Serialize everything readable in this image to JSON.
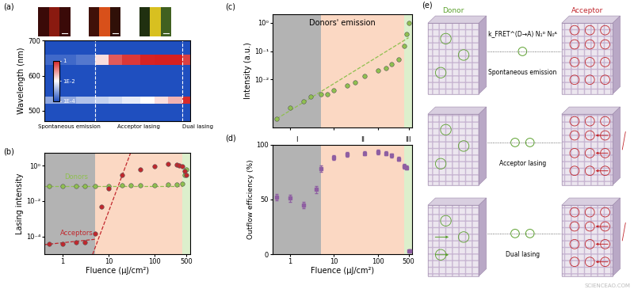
{
  "chart_data": [
    {
      "type": "heatmap",
      "panel": "(a)",
      "ylabel": "Wavelength (nm)",
      "log": "x",
      "tick_labels": "y",
      "xlim": [
        0.4,
        600
      ],
      "ylim": [
        470,
        700
      ],
      "yticks": [
        500,
        600,
        700
      ],
      "x_edges": [
        0.4,
        1,
        2,
        5,
        10,
        20,
        50,
        100,
        200,
        400,
        600
      ],
      "y_edges": [
        470,
        520,
        540,
        630,
        660,
        700
      ],
      "cells": [
        [
          0.0001,
          0.0001,
          0.0001,
          0.0001,
          0.0001,
          0.0001,
          0.0001,
          0.0001,
          0.0001,
          0.0001
        ],
        [
          0.001,
          0.001,
          0.002,
          0.003,
          0.004,
          0.006,
          0.01,
          0.02,
          0.05,
          0.8
        ],
        [
          0.0001,
          0.0001,
          0.0001,
          0.0001,
          0.0001,
          0.0001,
          0.0001,
          0.0001,
          0.0001,
          0.0001
        ],
        [
          0.0002,
          0.0002,
          0.0003,
          0.02,
          0.3,
          0.6,
          0.9,
          1,
          1,
          0.5
        ],
        [
          0.0001,
          0.0001,
          0.0001,
          0.0001,
          0.0001,
          0.0001,
          0.0001,
          0.0001,
          0.0001,
          0.0001
        ]
      ],
      "colorbar": {
        "range": [
          0.0001,
          1
        ],
        "log": true,
        "ticks": [
          1,
          {
            "value": 0.01,
            "label": "1E-2"
          },
          {
            "value": 0.0001,
            "label": "1E-4"
          }
        ]
      },
      "regions": [
        {
          "from": 0.4,
          "to": 5,
          "label": "Spontaneous emission"
        },
        {
          "from": 5,
          "to": 400,
          "label": "Acceptor lasing"
        },
        {
          "from": 400,
          "to": 600,
          "label": "Dual lasing"
        }
      ]
    },
    {
      "type": "scatter",
      "panel": "(b)",
      "xlabel": "Fluence (μJ/cm²)",
      "ylabel": "Lasing intensity",
      "log": true,
      "xlim": [
        0.4,
        600
      ],
      "xticks": [
        1,
        10,
        100,
        500
      ],
      "ylim": [
        1e-05,
        5
      ],
      "yticks": [
        {
          "value": 0.0001,
          "label": "10⁻⁴"
        },
        {
          "value": 0.01,
          "label": "10⁻²"
        },
        {
          "value": 1,
          "label": "10⁰"
        }
      ],
      "regions": [
        {
          "from": 0.4,
          "to": 5,
          "color": "#b3b3b3"
        },
        {
          "from": 5,
          "to": 400,
          "color": "#fbd8c3"
        },
        {
          "from": 400,
          "to": 600,
          "color": "#dcefcc"
        }
      ],
      "series": [
        {
          "name": "Donors",
          "color": "#8fc04f",
          "marker": "o",
          "x": [
            0.5,
            1,
            2,
            3,
            5,
            10,
            20,
            30,
            50,
            100,
            200,
            300,
            400,
            450,
            500
          ],
          "values": [
            0.07,
            0.07,
            0.07,
            0.07,
            0.07,
            0.07,
            0.075,
            0.08,
            0.08,
            0.08,
            0.085,
            0.09,
            0.1,
            0.3,
            0.6
          ]
        },
        {
          "name": "Acceptors",
          "color": "#c1272d",
          "marker": "o",
          "x": [
            0.5,
            1,
            2,
            3,
            5,
            7,
            10,
            20,
            50,
            100,
            200,
            300,
            350,
            400,
            450,
            500
          ],
          "values": [
            4e-05,
            4e-05,
            5e-05,
            5e-05,
            0.00015,
            0.005,
            0.05,
            0.3,
            0.6,
            0.9,
            1.2,
            1.1,
            1.0,
            0.9,
            0.5,
            0.3
          ]
        }
      ],
      "fits": [
        {
          "color": "#8fc04f",
          "line_style": "dashed",
          "x": [
            0.4,
            400
          ],
          "values": [
            0.07,
            0.07
          ]
        },
        {
          "color": "#c1272d",
          "line_style": "dashed",
          "x": [
            0.4,
            5
          ],
          "values": [
            3.5e-05,
            7e-05
          ]
        },
        {
          "color": "#c1272d",
          "line_style": "dashed",
          "x": [
            4.5,
            30
          ],
          "values": [
            1e-05,
            5
          ]
        }
      ]
    },
    {
      "type": "scatter",
      "panel": "(c)",
      "title": "Donors' emission",
      "ylabel": "Intensity (a.u.)",
      "log": true,
      "tick_labels": "y",
      "xlim": [
        0.4,
        600
      ],
      "xticks": [
        1,
        10,
        100,
        500
      ],
      "ylim": [
        0.0002,
        2
      ],
      "yticks": [
        {
          "value": 0.01,
          "label": "10⁻²"
        },
        {
          "value": 0.1,
          "label": "10⁻¹"
        },
        {
          "value": 1,
          "label": "10⁰"
        }
      ],
      "regions": [
        {
          "from": 0.4,
          "to": 5,
          "color": "#b3b3b3"
        },
        {
          "from": 5,
          "to": 400,
          "color": "#fbd8c3"
        },
        {
          "from": 400,
          "to": 600,
          "color": "#dcefcc"
        }
      ],
      "series": [
        {
          "color": "#8fc04f",
          "marker": "o",
          "x": [
            0.5,
            1,
            2,
            3,
            5,
            7,
            10,
            20,
            30,
            50,
            100,
            150,
            200,
            300,
            400,
            450,
            500
          ],
          "values": [
            0.0004,
            0.001,
            0.0017,
            0.0025,
            0.003,
            0.003,
            0.004,
            0.006,
            0.008,
            0.013,
            0.02,
            0.025,
            0.035,
            0.05,
            0.15,
            0.4,
            1.0
          ]
        }
      ],
      "fits": [
        {
          "color": "#8fc04f",
          "line_style": "dashed",
          "x": [
            0.5,
            500
          ],
          "values": [
            0.0004,
            0.3
          ]
        }
      ]
    },
    {
      "type": "scatter",
      "panel": "(d)",
      "xlabel": "Fluence (μJ/cm²)",
      "ylabel": "Outflow efficiency (%)",
      "log": "x",
      "xlim": [
        0.4,
        600
      ],
      "xticks": [
        1,
        10,
        100,
        500
      ],
      "ylim": [
        0,
        100
      ],
      "yticks": [
        0,
        50,
        100
      ],
      "regions": [
        {
          "from": 0.4,
          "to": 5,
          "color": "#b3b3b3",
          "label": "I"
        },
        {
          "from": 5,
          "to": 400,
          "color": "#fbd8c3",
          "label": "II"
        },
        {
          "from": 400,
          "to": 600,
          "color": "#dcefcc",
          "label": "III"
        }
      ],
      "series": [
        {
          "color": "#8e5ea2",
          "marker": "s",
          "x": [
            0.5,
            1,
            2,
            4,
            5,
            10,
            20,
            50,
            100,
            150,
            200,
            300,
            400,
            450,
            500,
            520,
            540
          ],
          "values": [
            52,
            51,
            45,
            59,
            78,
            88,
            91,
            92,
            93,
            92,
            90,
            87,
            80,
            79,
            3,
            3,
            3
          ],
          "errors": [
            3,
            3,
            3,
            3,
            3,
            2,
            2,
            2,
            2,
            2,
            2,
            2,
            2,
            2,
            1,
            1,
            1
          ]
        }
      ]
    }
  ],
  "diagram": {
    "panel": "(e)",
    "donor": "Donor",
    "acceptor": "Acceptor",
    "rows": [
      {
        "formula": "k_FRET^(D→A) N₁ᴰ N₀ᴬ",
        "label": "Spontaneous emission"
      },
      {
        "label": "Acceptor lasing"
      },
      {
        "label": "Dual lasing"
      }
    ]
  },
  "watermark": "SCIENCEAO.COM"
}
